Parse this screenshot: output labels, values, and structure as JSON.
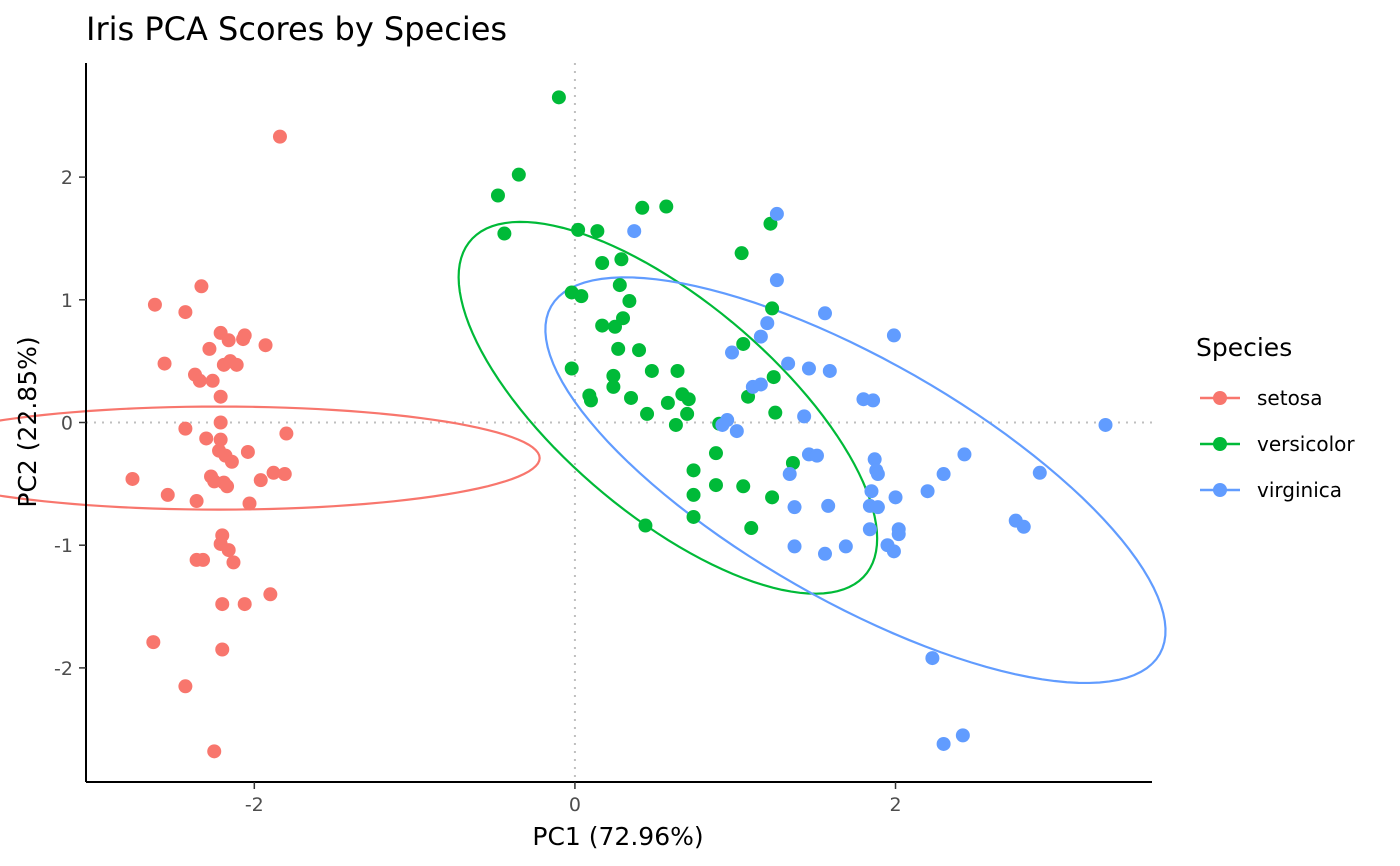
{
  "chart_data": {
    "type": "scatter",
    "title": "Iris PCA Scores by Species",
    "xlabel": "PC1 (72.96%)",
    "ylabel": "PC2 (22.85%)",
    "xlim": [
      -3.05,
      3.6
    ],
    "ylim": [
      -2.93,
      2.93
    ],
    "x_ticks": [
      -2,
      0,
      2
    ],
    "y_ticks": [
      -2,
      -1,
      0,
      1,
      2
    ],
    "reference_lines": {
      "x": 0,
      "y": 0
    },
    "grid": false,
    "legend": {
      "title": "Species",
      "position": "right"
    },
    "ellipses": {
      "setosa": {
        "cx": -2.22,
        "cy": -0.29,
        "rx": 0.42,
        "ry": 2.0,
        "angle": -90
      },
      "versicolor": {
        "cx": 0.58,
        "cy": 0.12,
        "rx": 1.85,
        "ry": 0.76,
        "angle": 51
      },
      "virginica": {
        "cx": 1.75,
        "cy": -0.47,
        "rx": 2.38,
        "ry": 0.9,
        "angle": 39
      }
    },
    "series": [
      {
        "name": "setosa",
        "color": "#F8766D",
        "points": [
          [
            -1.84,
            2.33
          ],
          [
            -2.33,
            1.11
          ],
          [
            -2.62,
            0.96
          ],
          [
            -2.43,
            0.9
          ],
          [
            -2.21,
            0.73
          ],
          [
            -2.06,
            0.71
          ],
          [
            -2.07,
            0.68
          ],
          [
            -2.16,
            0.67
          ],
          [
            -2.28,
            0.6
          ],
          [
            -1.93,
            0.63
          ],
          [
            -2.19,
            0.47
          ],
          [
            -2.15,
            0.5
          ],
          [
            -2.11,
            0.47
          ],
          [
            -2.56,
            0.48
          ],
          [
            -2.37,
            0.39
          ],
          [
            -2.34,
            0.34
          ],
          [
            -2.26,
            0.34
          ],
          [
            -2.21,
            0.21
          ],
          [
            -2.21,
            0.0
          ],
          [
            -1.8,
            -0.09
          ],
          [
            -2.43,
            -0.05
          ],
          [
            -2.3,
            -0.13
          ],
          [
            -2.21,
            -0.14
          ],
          [
            -2.22,
            -0.23
          ],
          [
            -2.04,
            -0.24
          ],
          [
            -2.18,
            -0.27
          ],
          [
            -2.14,
            -0.32
          ],
          [
            -1.88,
            -0.41
          ],
          [
            -1.81,
            -0.42
          ],
          [
            -1.96,
            -0.47
          ],
          [
            -2.76,
            -0.46
          ],
          [
            -2.27,
            -0.44
          ],
          [
            -2.25,
            -0.48
          ],
          [
            -2.19,
            -0.49
          ],
          [
            -2.17,
            -0.52
          ],
          [
            -2.54,
            -0.59
          ],
          [
            -2.36,
            -0.64
          ],
          [
            -2.03,
            -0.66
          ],
          [
            -2.2,
            -0.92
          ],
          [
            -2.21,
            -0.99
          ],
          [
            -2.16,
            -1.04
          ],
          [
            -2.36,
            -1.12
          ],
          [
            -2.32,
            -1.12
          ],
          [
            -2.13,
            -1.14
          ],
          [
            -1.9,
            -1.4
          ],
          [
            -2.2,
            -1.48
          ],
          [
            -2.06,
            -1.48
          ],
          [
            -2.63,
            -1.79
          ],
          [
            -2.2,
            -1.85
          ],
          [
            -2.43,
            -2.15
          ],
          [
            -2.25,
            -2.68
          ]
        ]
      },
      {
        "name": "versicolor",
        "color": "#00BA38",
        "points": [
          [
            -0.1,
            2.65
          ],
          [
            -0.35,
            2.02
          ],
          [
            -0.48,
            1.85
          ],
          [
            0.57,
            1.76
          ],
          [
            0.42,
            1.75
          ],
          [
            -0.44,
            1.54
          ],
          [
            0.02,
            1.57
          ],
          [
            0.14,
            1.56
          ],
          [
            1.22,
            1.62
          ],
          [
            1.04,
            1.38
          ],
          [
            0.29,
            1.33
          ],
          [
            0.17,
            1.3
          ],
          [
            0.28,
            1.12
          ],
          [
            -0.02,
            1.06
          ],
          [
            0.04,
            1.03
          ],
          [
            0.34,
            0.99
          ],
          [
            1.23,
            0.93
          ],
          [
            0.3,
            0.85
          ],
          [
            0.17,
            0.79
          ],
          [
            0.25,
            0.78
          ],
          [
            1.05,
            0.64
          ],
          [
            0.27,
            0.6
          ],
          [
            0.4,
            0.59
          ],
          [
            -0.02,
            0.44
          ],
          [
            0.48,
            0.42
          ],
          [
            0.64,
            0.42
          ],
          [
            0.24,
            0.38
          ],
          [
            1.24,
            0.37
          ],
          [
            0.24,
            0.29
          ],
          [
            1.08,
            0.21
          ],
          [
            0.67,
            0.23
          ],
          [
            0.35,
            0.2
          ],
          [
            0.09,
            0.22
          ],
          [
            0.1,
            0.18
          ],
          [
            0.71,
            0.19
          ],
          [
            0.58,
            0.16
          ],
          [
            1.25,
            0.08
          ],
          [
            0.45,
            0.07
          ],
          [
            0.7,
            0.07
          ],
          [
            0.63,
            -0.02
          ],
          [
            0.9,
            -0.01
          ],
          [
            0.88,
            -0.25
          ],
          [
            1.36,
            -0.33
          ],
          [
            0.74,
            -0.39
          ],
          [
            0.88,
            -0.51
          ],
          [
            1.05,
            -0.52
          ],
          [
            0.74,
            -0.59
          ],
          [
            1.23,
            -0.61
          ],
          [
            0.74,
            -0.77
          ],
          [
            1.1,
            -0.86
          ],
          [
            0.44,
            -0.84
          ]
        ]
      },
      {
        "name": "virginica",
        "color": "#619CFF",
        "points": [
          [
            1.26,
            1.7
          ],
          [
            0.37,
            1.56
          ],
          [
            1.26,
            1.16
          ],
          [
            1.56,
            0.89
          ],
          [
            1.2,
            0.81
          ],
          [
            1.99,
            0.71
          ],
          [
            1.16,
            0.7
          ],
          [
            0.98,
            0.57
          ],
          [
            1.33,
            0.48
          ],
          [
            1.46,
            0.44
          ],
          [
            1.59,
            0.42
          ],
          [
            1.11,
            0.29
          ],
          [
            1.16,
            0.31
          ],
          [
            1.8,
            0.19
          ],
          [
            1.86,
            0.18
          ],
          [
            1.43,
            0.05
          ],
          [
            3.31,
            -0.02
          ],
          [
            0.95,
            0.02
          ],
          [
            0.92,
            -0.02
          ],
          [
            1.01,
            -0.07
          ],
          [
            1.46,
            -0.26
          ],
          [
            1.51,
            -0.27
          ],
          [
            2.43,
            -0.26
          ],
          [
            1.87,
            -0.3
          ],
          [
            1.88,
            -0.39
          ],
          [
            1.89,
            -0.42
          ],
          [
            1.34,
            -0.42
          ],
          [
            2.3,
            -0.42
          ],
          [
            2.9,
            -0.41
          ],
          [
            1.85,
            -0.56
          ],
          [
            2.2,
            -0.56
          ],
          [
            2.0,
            -0.61
          ],
          [
            1.58,
            -0.68
          ],
          [
            1.84,
            -0.68
          ],
          [
            1.89,
            -0.69
          ],
          [
            1.37,
            -0.69
          ],
          [
            2.75,
            -0.8
          ],
          [
            2.8,
            -0.85
          ],
          [
            1.84,
            -0.87
          ],
          [
            2.02,
            -0.87
          ],
          [
            2.02,
            -0.91
          ],
          [
            1.37,
            -1.01
          ],
          [
            1.69,
            -1.01
          ],
          [
            1.95,
            -1.0
          ],
          [
            1.99,
            -1.05
          ],
          [
            1.56,
            -1.07
          ],
          [
            2.23,
            -1.92
          ],
          [
            2.3,
            -2.62
          ],
          [
            2.42,
            -2.55
          ]
        ]
      }
    ]
  }
}
